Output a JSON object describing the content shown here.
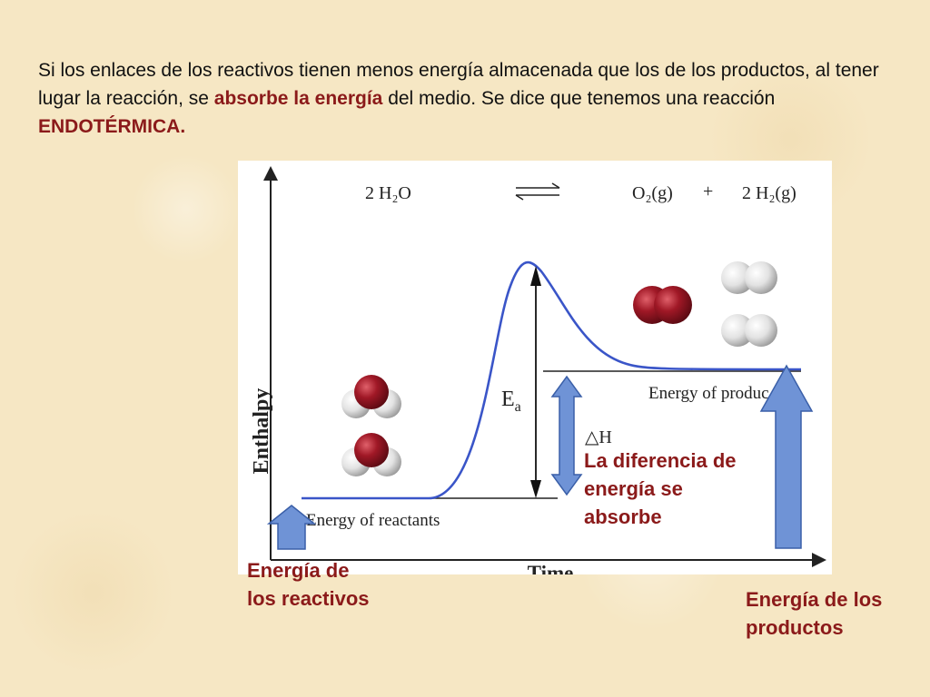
{
  "intro": {
    "part1": "Si los enlaces de los reactivos tienen menos energía almacenada que los de los productos, al tener lugar la reacción, se ",
    "highlight1": "absorbe la energía",
    "part2": " del medio. Se dice que tenemos una reacción ",
    "highlight2": "ENDOTÉRMICA."
  },
  "diagram": {
    "y_axis_label": "Enthalpy",
    "x_axis_label": "Time",
    "reactant_formula": "2 H₂O",
    "equilibrium_symbol": "⇌",
    "product_o2": "O₂(g)",
    "plus": "+",
    "product_h2": "2 H₂(g)",
    "activation_label": "Ea",
    "activation_sub": "a",
    "activation_main": "E",
    "delta_h": "△H",
    "reactants_level_label": "Energy of reactants",
    "products_level_label": "Energy of produc",
    "water_color": "#9b1b2a",
    "oxygen_color": "#a01826",
    "hydrogen_color": "#e6e6e6",
    "curve_color": "#3a55c8",
    "arrow_color": "#6f93d6"
  },
  "labels": {
    "reactivos_line1": "Energía de",
    "reactivos_line2": "los reactivos",
    "productos_line1": "Energía de los",
    "productos_line2": "productos",
    "diferencia_line1": "La diferencia de",
    "diferencia_line2": "energía se",
    "diferencia_line3": "absorbe"
  }
}
